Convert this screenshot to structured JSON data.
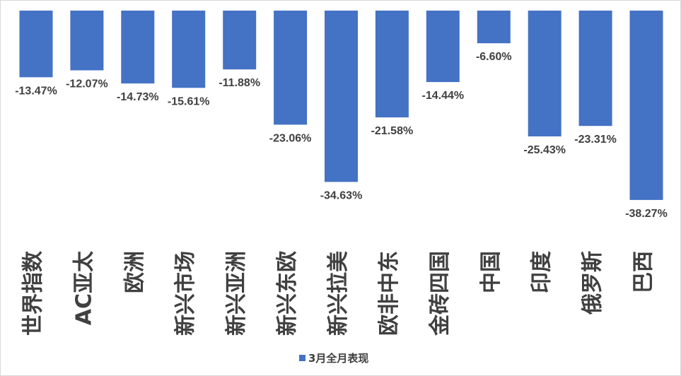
{
  "chart_data": {
    "type": "bar",
    "categories": [
      "世界指数",
      "AC亚太",
      "欧洲",
      "新兴市场",
      "新兴亚洲",
      "新兴东欧",
      "新兴拉美",
      "欧非中东",
      "金砖四国",
      "中国",
      "印度",
      "俄罗斯",
      "巴西"
    ],
    "series": [
      {
        "name": "3月全月表现",
        "values": [
          -13.47,
          -12.07,
          -14.73,
          -15.61,
          -11.88,
          -23.06,
          -34.63,
          -21.58,
          -14.44,
          -6.6,
          -25.43,
          -23.31,
          -38.27
        ],
        "labels": [
          "-13.47%",
          "-12.07%",
          "-14.73%",
          "-15.61%",
          "-11.88%",
          "-23.06%",
          "-34.63%",
          "-21.58%",
          "-14.44%",
          "-6.60%",
          "-25.43%",
          "-23.31%",
          "-38.27%"
        ],
        "color": "#4472c4"
      }
    ],
    "title": "",
    "xlabel": "",
    "ylabel": "",
    "ylim": [
      -40,
      0
    ],
    "grid": false,
    "axis_visible": false,
    "legend": {
      "position": "bottom",
      "label": "3月全月表现"
    }
  }
}
